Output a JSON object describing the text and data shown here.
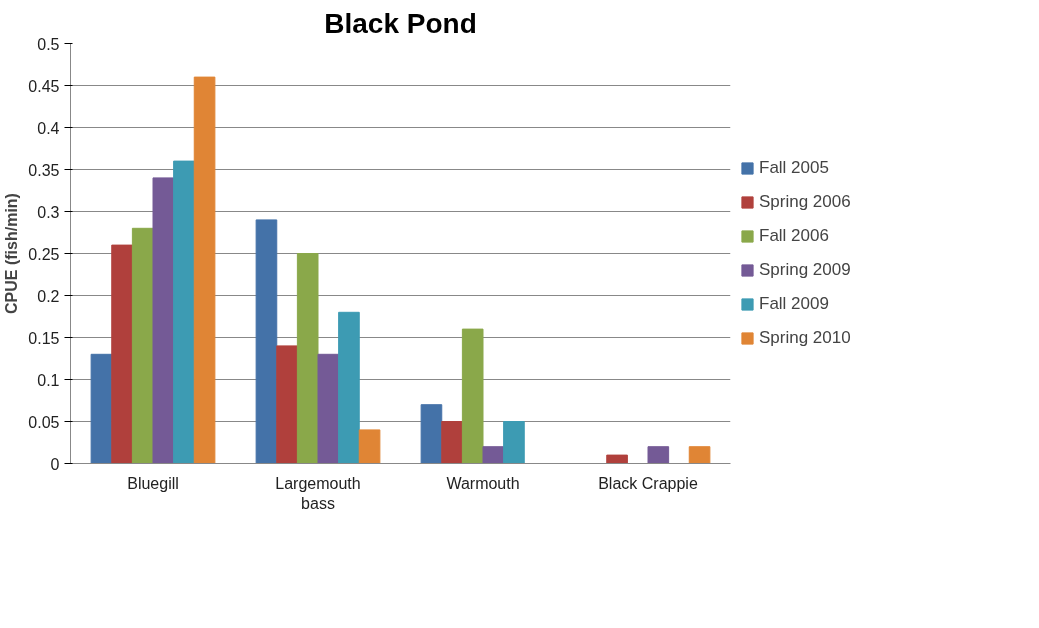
{
  "chart_data": {
    "type": "bar",
    "title": "Black Pond",
    "ylabel": "CPUE (fish/min)",
    "categories": [
      "Bluegill",
      "Largemouth\nbass",
      "Warmouth",
      "Black Crappie"
    ],
    "series": [
      {
        "name": "Fall 2005",
        "color": "#4472a8",
        "values": [
          0.13,
          0.29,
          0.07,
          0
        ]
      },
      {
        "name": "Spring 2006",
        "color": "#b0403c",
        "values": [
          0.26,
          0.14,
          0.05,
          0.01
        ]
      },
      {
        "name": "Fall 2006",
        "color": "#8aa84a",
        "values": [
          0.28,
          0.25,
          0.16,
          0
        ]
      },
      {
        "name": "Spring 2009",
        "color": "#745a96",
        "values": [
          0.34,
          0.13,
          0.02,
          0.02
        ]
      },
      {
        "name": "Fall 2009",
        "color": "#3d9bb3",
        "values": [
          0.36,
          0.18,
          0.05,
          0
        ]
      },
      {
        "name": "Spring 2010",
        "color": "#e08535",
        "values": [
          0.46,
          0.04,
          0,
          0.02
        ]
      }
    ],
    "ylim": [
      0,
      0.5
    ],
    "yticks": [
      0,
      0.05,
      0.1,
      0.15,
      0.2,
      0.25,
      0.3,
      0.35,
      0.4,
      0.45,
      0.5
    ],
    "grid": "y",
    "legend": "right"
  }
}
